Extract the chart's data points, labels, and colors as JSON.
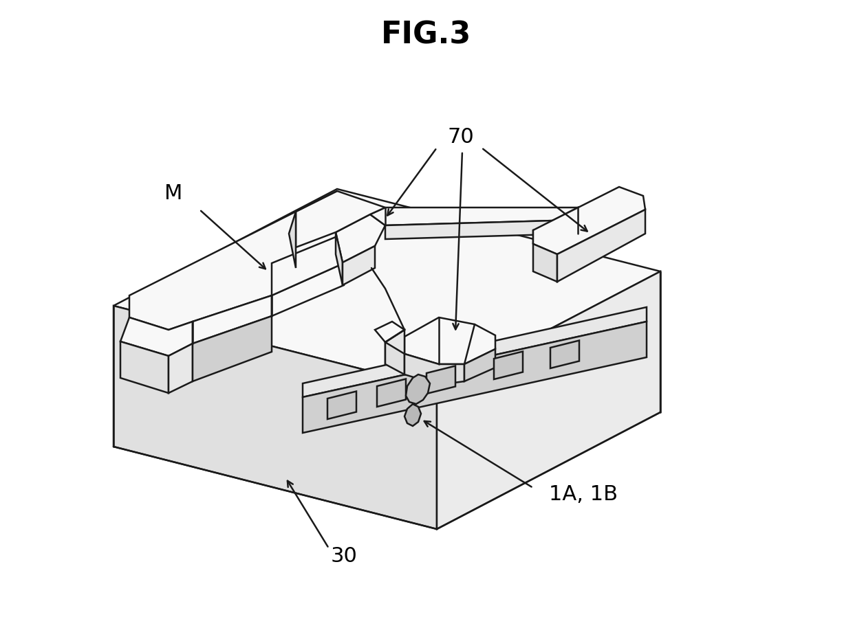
{
  "title": "FIG.3",
  "title_fontsize": 32,
  "bg_color": "#ffffff",
  "line_color": "#1a1a1a",
  "linewidth": 1.8,
  "label_70": "70",
  "label_M": "M",
  "label_30": "30",
  "label_1A1B": "1A, 1B",
  "label_fontsize": 22,
  "face_top": "#f8f8f8",
  "face_left": "#e0e0e0",
  "face_right": "#ebebeb",
  "face_slot": "#d0d0d0",
  "face_dark": "#c8c8c8",
  "face_mid": "#e8e8e8"
}
